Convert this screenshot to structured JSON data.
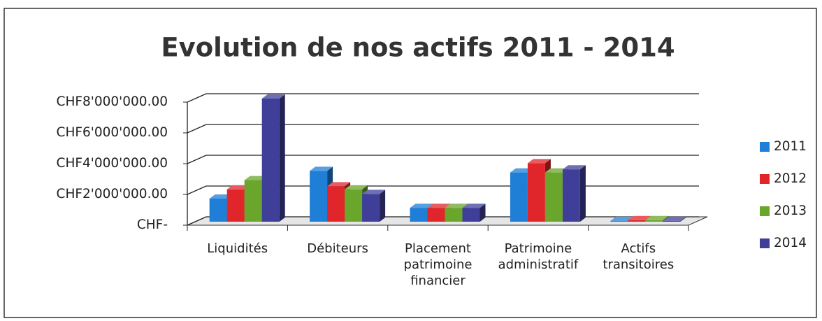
{
  "chart_data": {
    "type": "bar3d",
    "title": "Evolution de nos actifs 2011 - 2014",
    "categories": [
      "Liquidités",
      "Débiteurs",
      "Placement patrimoine financier",
      "Patrimoine administratif",
      "Actifs transitoires"
    ],
    "series": [
      {
        "name": "2011",
        "color": "#1f7fd6",
        "values": [
          1500000,
          3300000,
          900000,
          3200000,
          50000
        ]
      },
      {
        "name": "2012",
        "color": "#e0262b",
        "values": [
          2100000,
          2300000,
          900000,
          3800000,
          100000
        ]
      },
      {
        "name": "2013",
        "color": "#6aa52c",
        "values": [
          2700000,
          2100000,
          900000,
          3200000,
          100000
        ]
      },
      {
        "name": "2014",
        "color": "#3f3f9a",
        "values": [
          8000000,
          1800000,
          900000,
          3400000,
          50000
        ]
      }
    ],
    "ylim": [
      0,
      8000000
    ],
    "yticks": [
      {
        "value": 0,
        "label": "CHF-"
      },
      {
        "value": 2000000,
        "label": "CHF2'000'000.00"
      },
      {
        "value": 4000000,
        "label": "CHF4'000'000.00"
      },
      {
        "value": 6000000,
        "label": "CHF6'000'000.00"
      },
      {
        "value": 8000000,
        "label": "CHF8'000'000.00"
      }
    ],
    "grid": true,
    "legend": "right"
  }
}
